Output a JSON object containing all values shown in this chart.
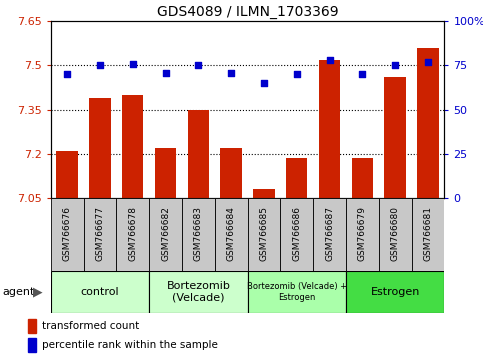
{
  "title": "GDS4089 / ILMN_1703369",
  "categories": [
    "GSM766676",
    "GSM766677",
    "GSM766678",
    "GSM766682",
    "GSM766683",
    "GSM766684",
    "GSM766685",
    "GSM766686",
    "GSM766687",
    "GSM766679",
    "GSM766680",
    "GSM766681"
  ],
  "bar_values": [
    7.21,
    7.39,
    7.4,
    7.22,
    7.35,
    7.22,
    7.08,
    7.185,
    7.52,
    7.185,
    7.46,
    7.56
  ],
  "dot_values": [
    70,
    75,
    76,
    71,
    75,
    71,
    65,
    70,
    78,
    70,
    75,
    77
  ],
  "ylim_left": [
    7.05,
    7.65
  ],
  "ylim_right": [
    0,
    100
  ],
  "yticks_left": [
    7.05,
    7.2,
    7.35,
    7.5,
    7.65
  ],
  "ytick_labels_left": [
    "7.05",
    "7.2",
    "7.35",
    "7.5",
    "7.65"
  ],
  "yticks_right": [
    0,
    25,
    50,
    75,
    100
  ],
  "ytick_labels_right": [
    "0",
    "25",
    "50",
    "75",
    "100%"
  ],
  "hlines": [
    7.2,
    7.35,
    7.5
  ],
  "bar_color": "#cc2200",
  "dot_color": "#0000cc",
  "bar_bottom": 7.05,
  "agent_groups": [
    {
      "label": "control",
      "start": 0,
      "end": 3,
      "color": "#ccffcc"
    },
    {
      "label": "Bortezomib\n(Velcade)",
      "start": 3,
      "end": 6,
      "color": "#ccffcc"
    },
    {
      "label": "Bortezomib (Velcade) +\nEstrogen",
      "start": 6,
      "end": 9,
      "color": "#aaffaa"
    },
    {
      "label": "Estrogen",
      "start": 9,
      "end": 12,
      "color": "#44dd44"
    }
  ],
  "xlabel_fontsize": 6.5,
  "title_fontsize": 10,
  "label_gray": "#c8c8c8",
  "agent_light_green": "#ccffcc",
  "agent_bright_green": "#44dd44"
}
